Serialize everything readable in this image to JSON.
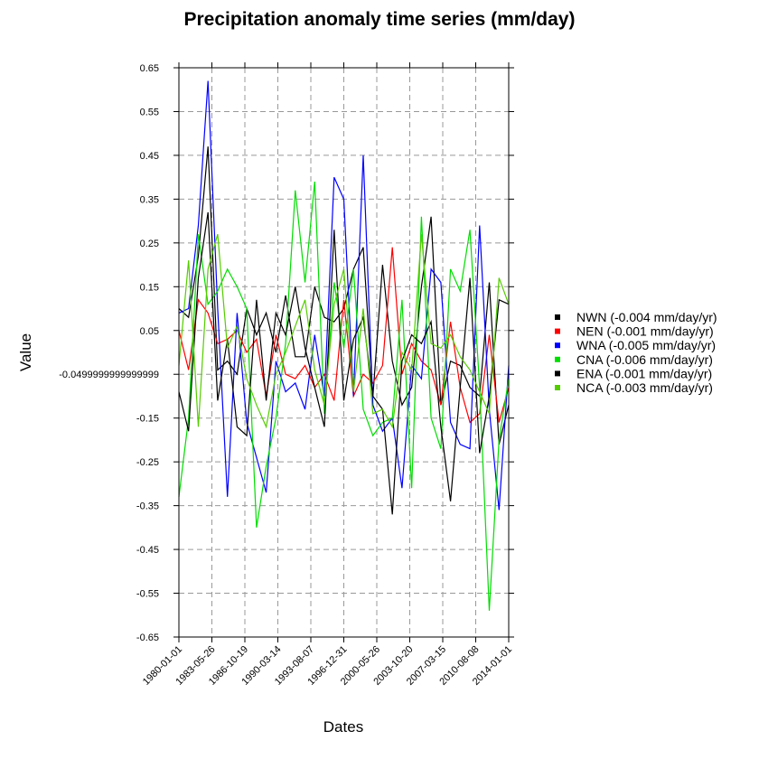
{
  "chart_data": {
    "type": "line",
    "title": "Precipitation anomaly time series (mm/day)",
    "xlabel": "Dates",
    "ylabel": "Value",
    "x_tick_labels": [
      "1980-01-01",
      "1983-05-26",
      "1986-10-19",
      "1990-03-14",
      "1993-08-07",
      "1996-12-31",
      "2000-05-26",
      "2003-10-20",
      "2007-03-15",
      "2010-08-08",
      "2014-01-01"
    ],
    "y_tick_labels": [
      "0.65",
      "0.55",
      "0.45",
      "0.35",
      "0.25",
      "0.15",
      "0.05",
      "-0.0499999999999999",
      "-0.15",
      "-0.25",
      "-0.35",
      "-0.45",
      "-0.55",
      "-0.65"
    ],
    "y_tick_values": [
      0.65,
      0.55,
      0.45,
      0.35,
      0.25,
      0.15,
      0.05,
      -0.05,
      -0.15,
      -0.25,
      -0.35,
      -0.45,
      -0.55,
      -0.65
    ],
    "ylim": [
      -0.65,
      0.65
    ],
    "x_year_range": [
      1980,
      2014
    ],
    "grid": true,
    "legend_position": "right",
    "series": [
      {
        "name": "NWN (-0.004 mm/day/yr)",
        "color": "#000000",
        "values": [
          0.1,
          0.08,
          0.22,
          0.47,
          -0.04,
          -0.02,
          -0.05,
          0.1,
          0.04,
          0.09,
          0.0,
          0.13,
          -0.01,
          -0.01,
          0.15,
          0.08,
          0.07,
          0.1,
          0.19,
          0.24,
          -0.1,
          0.2,
          -0.02,
          -0.12,
          -0.08,
          0.15,
          0.31,
          -0.12,
          -0.02,
          -0.03,
          -0.08,
          -0.1,
          0.16,
          -0.21,
          -0.12
        ]
      },
      {
        "name": "NEN (-0.001 mm/day/yr)",
        "color": "#ff0000",
        "values": [
          0.05,
          -0.04,
          0.12,
          0.09,
          0.02,
          0.03,
          0.05,
          0.0,
          0.03,
          -0.1,
          0.04,
          -0.05,
          -0.06,
          -0.03,
          -0.08,
          -0.05,
          -0.11,
          0.12,
          -0.1,
          -0.05,
          -0.07,
          -0.03,
          0.24,
          -0.05,
          0.02,
          -0.02,
          -0.04,
          -0.12,
          0.07,
          -0.08,
          -0.16,
          -0.14,
          0.04,
          -0.16,
          -0.08
        ]
      },
      {
        "name": "WNA (-0.005 mm/day/yr)",
        "color": "#0000ff",
        "values": [
          0.09,
          0.1,
          0.29,
          0.62,
          0.1,
          -0.33,
          0.09,
          -0.16,
          -0.24,
          -0.32,
          -0.02,
          -0.09,
          -0.07,
          -0.13,
          0.04,
          -0.1,
          0.4,
          0.35,
          -0.1,
          0.45,
          -0.12,
          -0.18,
          -0.15,
          -0.31,
          -0.03,
          -0.06,
          0.19,
          0.16,
          -0.16,
          -0.21,
          -0.22,
          0.29,
          -0.13,
          -0.36,
          -0.03
        ]
      },
      {
        "name": "CNA (-0.006 mm/day/yr)",
        "color": "#00dd00",
        "values": [
          -0.33,
          -0.15,
          0.27,
          0.11,
          0.14,
          0.19,
          0.15,
          0.1,
          -0.4,
          -0.26,
          -0.15,
          0.02,
          0.37,
          0.16,
          0.39,
          -0.14,
          0.16,
          0.01,
          0.19,
          -0.13,
          -0.19,
          -0.16,
          -0.15,
          0.12,
          -0.31,
          0.31,
          -0.15,
          -0.22,
          0.19,
          0.14,
          0.28,
          -0.08,
          -0.59,
          -0.2,
          -0.06
        ]
      },
      {
        "name": "ENA (-0.001 mm/day/yr)",
        "color": "#000000",
        "values": [
          -0.09,
          -0.18,
          0.17,
          0.32,
          -0.11,
          0.03,
          -0.17,
          -0.19,
          0.12,
          -0.11,
          0.09,
          0.04,
          0.15,
          0.01,
          -0.08,
          -0.17,
          0.28,
          -0.11,
          0.03,
          0.08,
          -0.1,
          -0.13,
          -0.37,
          -0.02,
          0.04,
          0.02,
          0.07,
          -0.17,
          -0.34,
          -0.08,
          0.17,
          -0.23,
          -0.1,
          0.12,
          0.11
        ]
      },
      {
        "name": "NCA (-0.003 mm/day/yr)",
        "color": "#55cc00",
        "values": [
          -0.03,
          0.21,
          -0.17,
          0.19,
          0.27,
          0.01,
          0.06,
          -0.06,
          -0.12,
          -0.17,
          -0.05,
          0.0,
          0.06,
          0.12,
          -0.04,
          -0.12,
          0.11,
          0.19,
          -0.09,
          0.1,
          -0.14,
          -0.13,
          -0.17,
          0.0,
          -0.04,
          0.27,
          0.02,
          0.01,
          0.04,
          -0.01,
          -0.04,
          -0.09,
          -0.14,
          0.17,
          0.11
        ]
      }
    ]
  }
}
